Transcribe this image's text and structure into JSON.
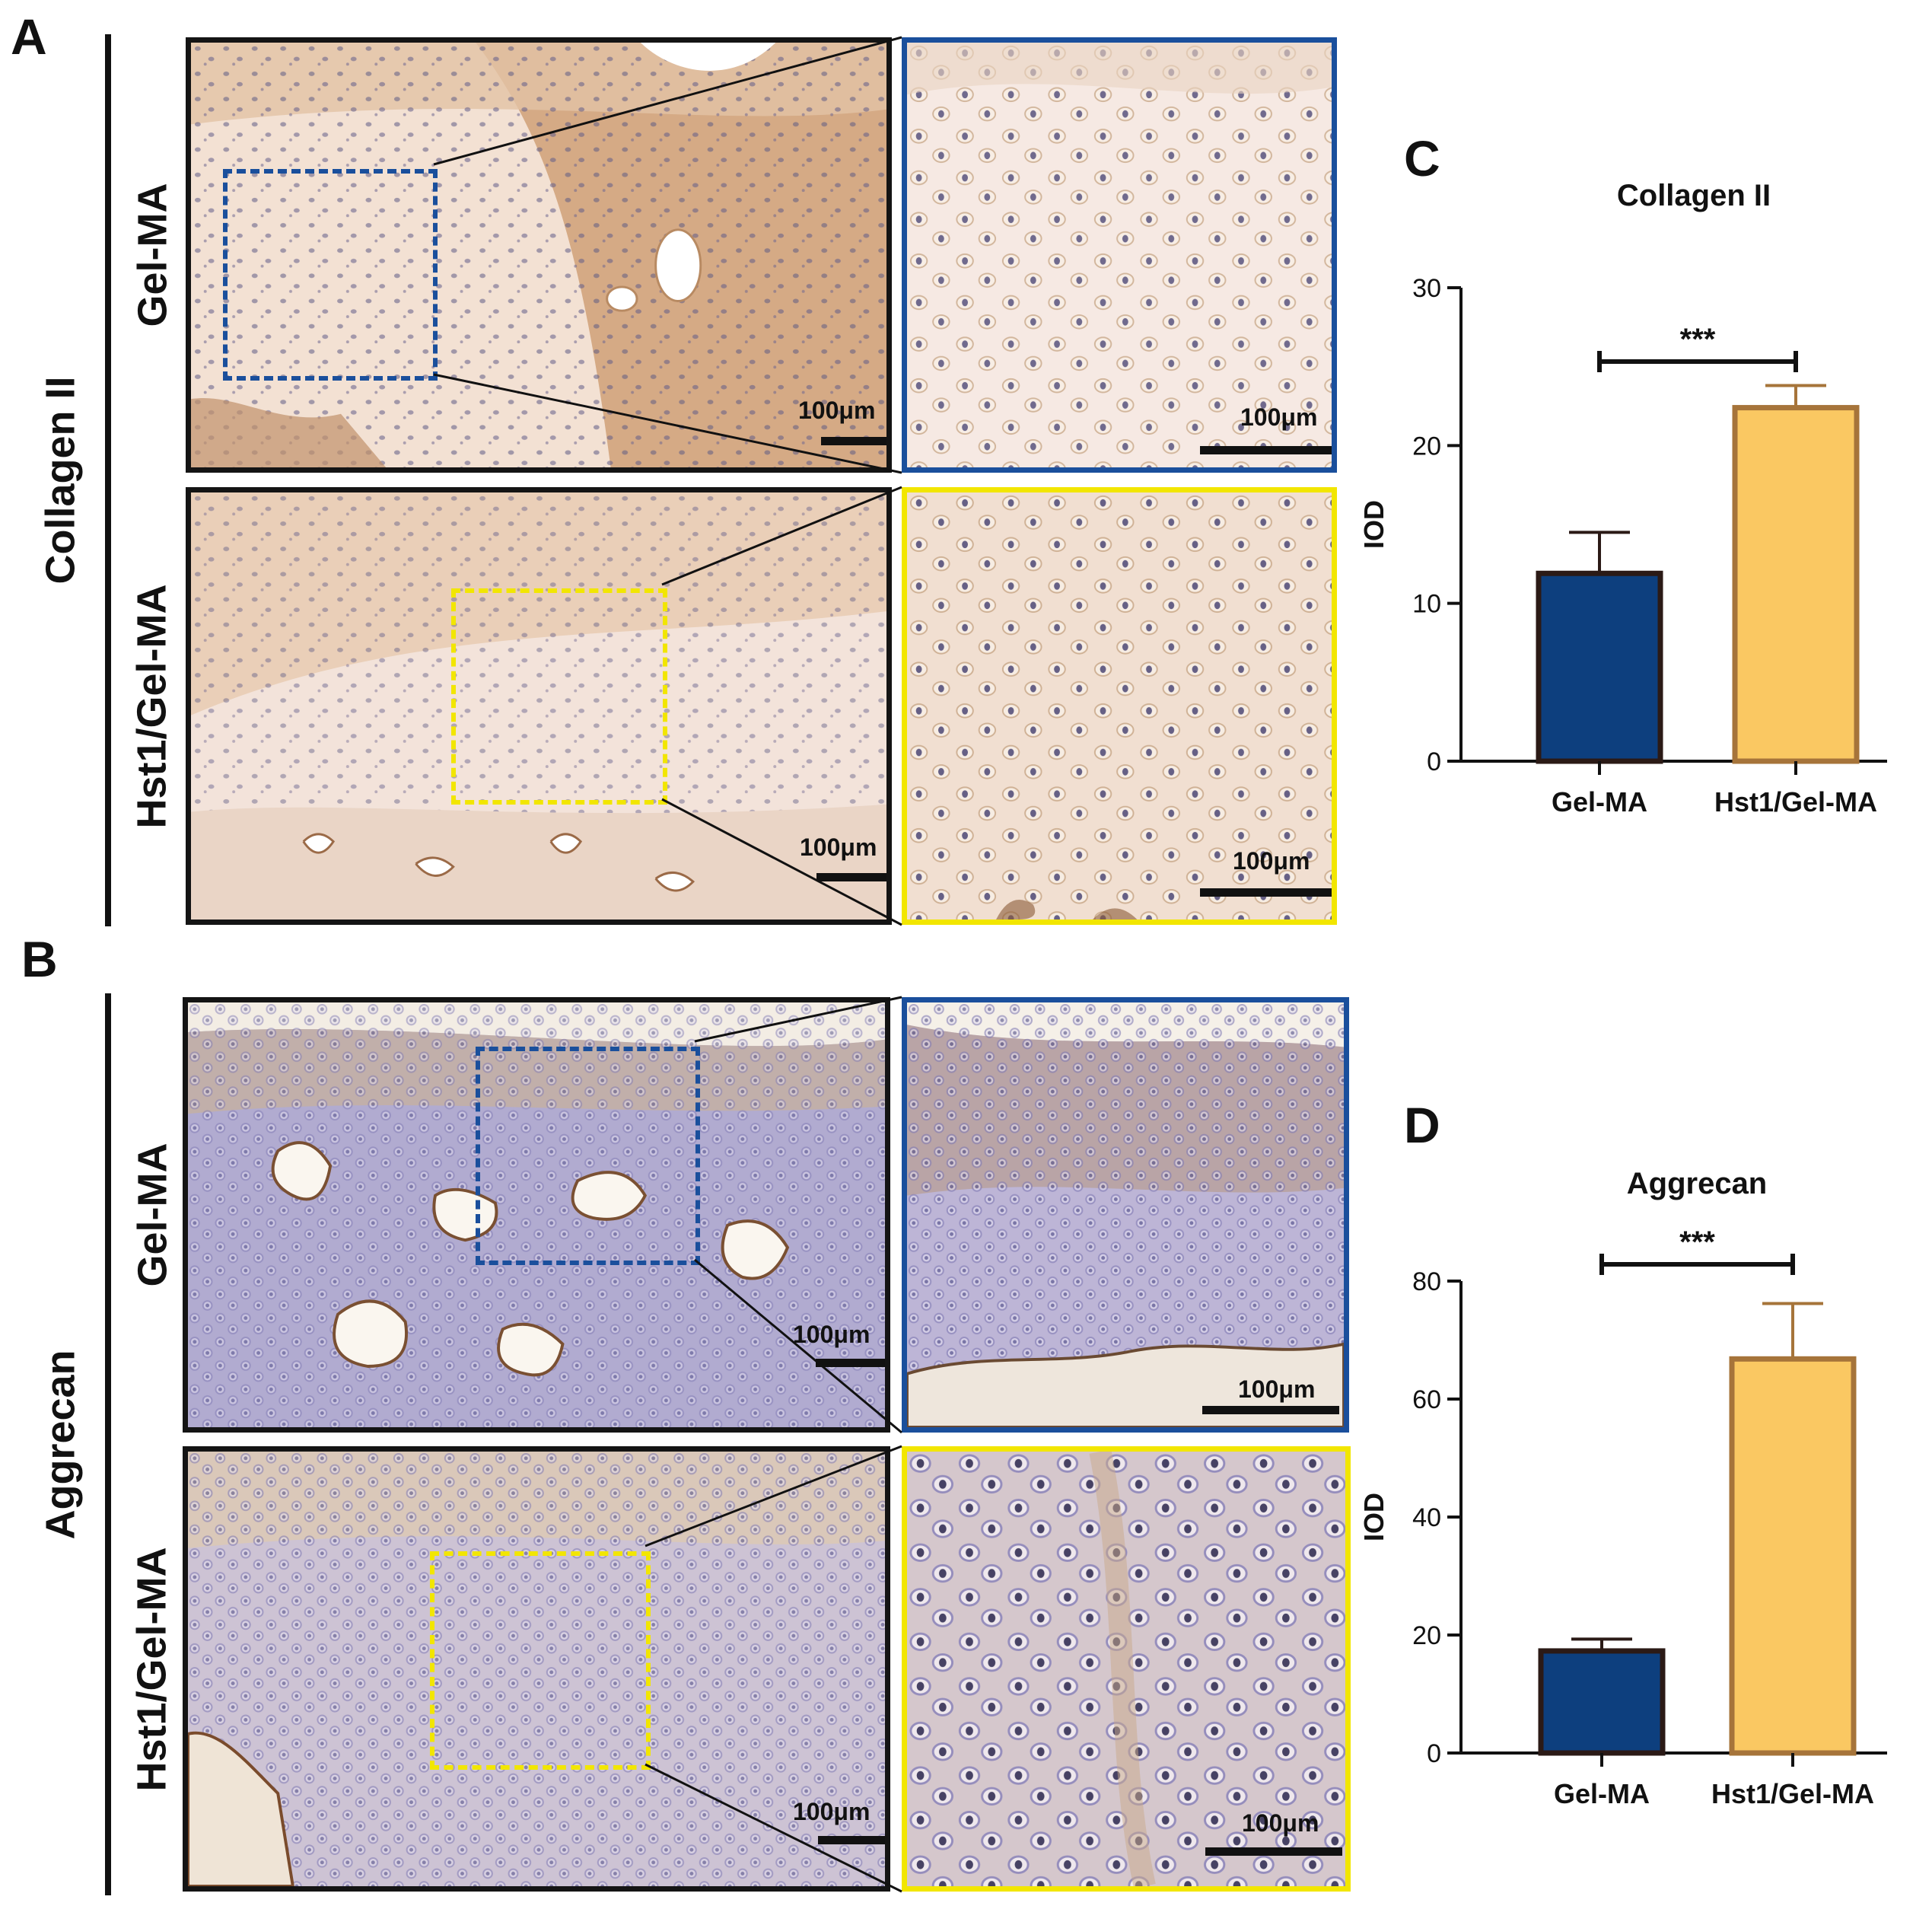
{
  "panels": {
    "A": {
      "letter": "A",
      "group_label": "Collagen II"
    },
    "B": {
      "letter": "B",
      "group_label": "Aggrecan"
    },
    "C": {
      "letter": "C"
    },
    "D": {
      "letter": "D"
    }
  },
  "row_labels": {
    "gelma": "Gel-MA",
    "hst1": "Hst1/Gel-MA"
  },
  "scale_bar_label": "100μm",
  "colors": {
    "gelma_bar": "#0d3f7e",
    "hst1_bar": "#fac862",
    "gelma_border": "#2b1a16",
    "hst1_border": "#a6743a",
    "roi_blue": "#1a4f9c",
    "roi_yellow": "#f2e600",
    "collagen_stain": "#d9b48f",
    "aggrecan_stain": "#8e8fc4"
  },
  "chart_data": [
    {
      "type": "bar",
      "panel": "C",
      "title": "Collagen II",
      "categories": [
        "Gel-MA",
        "Hst1/Gel-MA"
      ],
      "values": [
        11.9,
        22.4
      ],
      "errors": [
        2.6,
        1.4
      ],
      "ylabel": "IOD",
      "xlabel": "",
      "ylim": [
        0,
        30
      ],
      "yticks": [
        0,
        10,
        20,
        30
      ],
      "significance": "***",
      "grid": false
    },
    {
      "type": "bar",
      "panel": "D",
      "title": "Aggrecan",
      "categories": [
        "Gel-MA",
        "Hst1/Gel-MA"
      ],
      "values": [
        17.3,
        66.8
      ],
      "errors": [
        2.0,
        9.4
      ],
      "ylabel": "IOD",
      "xlabel": "",
      "ylim": [
        0,
        80
      ],
      "yticks": [
        0,
        20,
        40,
        60,
        80
      ],
      "significance": "***",
      "grid": false
    }
  ]
}
